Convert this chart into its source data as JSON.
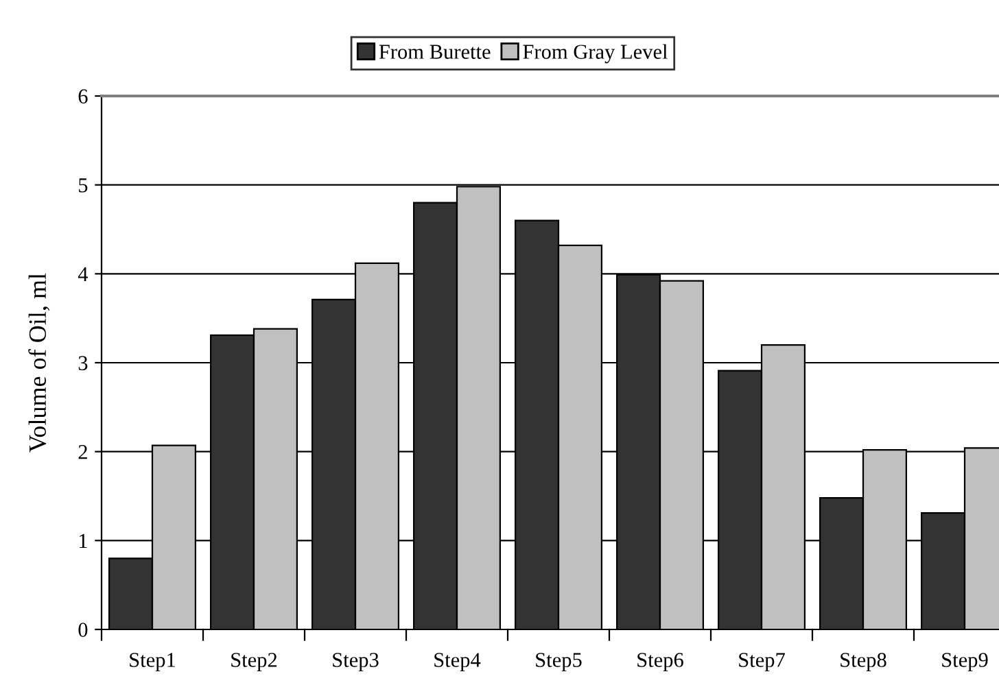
{
  "chart_data": {
    "type": "bar",
    "ylabel": "Volume of Oil, ml",
    "categories": [
      "Step1",
      "Step2",
      "Step3",
      "Step4",
      "Step5",
      "Step6",
      "Step7",
      "Step8",
      "Step9"
    ],
    "series": [
      {
        "name": "From Burette",
        "color": "#333333",
        "values": [
          0.8,
          3.31,
          3.71,
          4.8,
          4.6,
          3.99,
          2.91,
          1.48,
          1.31
        ]
      },
      {
        "name": "From Gray Level",
        "color": "#c0c0c0",
        "values": [
          2.07,
          3.38,
          4.12,
          4.98,
          4.32,
          3.92,
          3.2,
          2.02,
          2.04
        ]
      }
    ],
    "ylim": [
      0,
      6
    ],
    "yticks": [
      0,
      1,
      2,
      3,
      4,
      5,
      6
    ],
    "grid": "y",
    "legend": "top"
  }
}
